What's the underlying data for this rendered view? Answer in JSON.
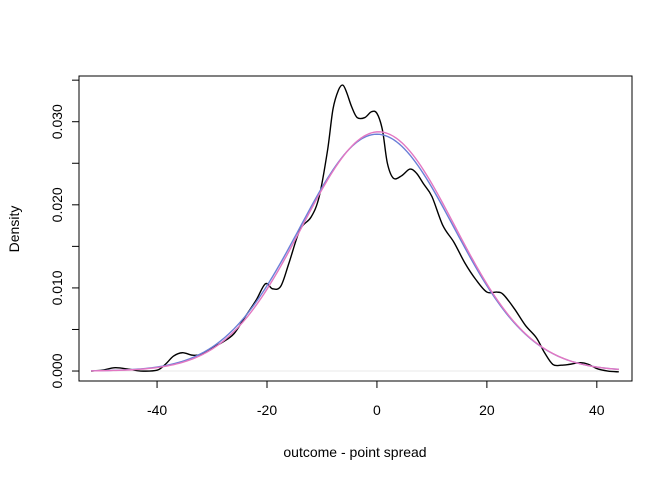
{
  "chart_data": {
    "type": "line",
    "title": "",
    "xlabel": "outcome - point spread",
    "ylabel": "Density",
    "xlim": [
      -54.2,
      46.4
    ],
    "ylim": [
      -0.0012,
      0.0355
    ],
    "x_ticks": [
      -40,
      -20,
      0,
      20,
      40
    ],
    "y_ticks": [
      0.0,
      0.01,
      0.02,
      0.03
    ],
    "y_tick_labels": [
      "0.000",
      "0.010",
      "0.020",
      "0.030"
    ],
    "grid": false,
    "legend": "none",
    "series": [
      {
        "color": "#000000",
        "style": "kernel-density",
        "x": [
          -52,
          -50,
          -47.6,
          -45,
          -43,
          -40,
          -38.5,
          -37,
          -35.4,
          -33.5,
          -32,
          -30,
          -28,
          -26,
          -24,
          -22,
          -20.3,
          -19,
          -17.5,
          -16,
          -14,
          -12,
          -10.5,
          -9,
          -8,
          -7,
          -6.2,
          -5.5,
          -4.6,
          -3.6,
          -2.2,
          -1,
          0,
          1,
          1.9,
          3,
          4.5,
          6,
          7.2,
          8.5,
          10,
          12,
          14,
          16,
          18,
          20,
          21.8,
          23,
          25,
          27,
          29,
          30.5,
          32,
          33.5,
          35,
          37,
          38.5,
          40,
          42,
          44
        ],
        "y": [
          0.0,
          0.0001,
          0.0004,
          0.0002,
          0.0,
          0.0001,
          0.0008,
          0.0018,
          0.0022,
          0.0019,
          0.002,
          0.0028,
          0.0035,
          0.0045,
          0.0065,
          0.0085,
          0.0105,
          0.0099,
          0.0102,
          0.013,
          0.017,
          0.0185,
          0.021,
          0.0265,
          0.0315,
          0.0338,
          0.0344,
          0.0335,
          0.0318,
          0.0305,
          0.0305,
          0.0312,
          0.031,
          0.029,
          0.025,
          0.0232,
          0.0235,
          0.0243,
          0.0238,
          0.0225,
          0.021,
          0.0175,
          0.0155,
          0.013,
          0.011,
          0.0095,
          0.0095,
          0.0092,
          0.0075,
          0.0055,
          0.004,
          0.0022,
          0.0008,
          0.0007,
          0.0008,
          0.001,
          0.0008,
          0.0003,
          0.0,
          -0.0001
        ]
      },
      {
        "color": "#6b7fd7",
        "style": "normal-curve",
        "mean": 0,
        "sd": 14,
        "x_range": [
          -52,
          44
        ]
      },
      {
        "color": "#e377c2",
        "style": "normal-curve",
        "mean": 0.3,
        "sd": 13.86,
        "x_range": [
          -52,
          44
        ]
      }
    ]
  }
}
